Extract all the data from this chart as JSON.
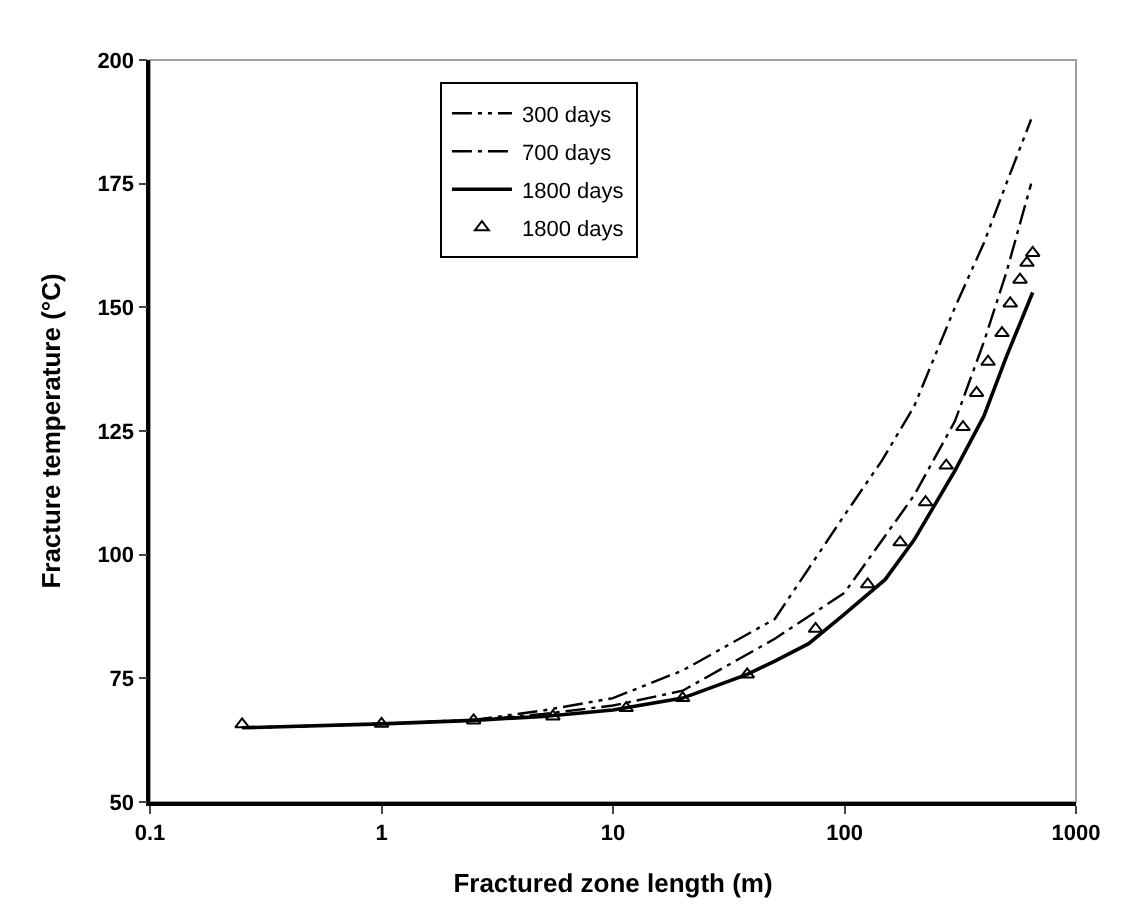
{
  "chart_data": {
    "type": "line",
    "xlabel": "Fractured zone length (m)",
    "ylabel": "Fracture temperature (°C)",
    "log": "x",
    "grid": false,
    "legend": "top",
    "xlim": [
      0.1,
      1000
    ],
    "xticks": [
      0.1,
      1,
      10,
      100,
      1000
    ],
    "ylim": [
      50,
      200
    ],
    "yticks": [
      50,
      75,
      100,
      125,
      150,
      175,
      200
    ],
    "series": [
      {
        "name": "300 days",
        "color": "#000000",
        "line_style": "dashdotdot",
        "marker": "none",
        "x": [
          0.25,
          1,
          2.5,
          5,
          10,
          20,
          50,
          100,
          145,
          200,
          300,
          400,
          500,
          640
        ],
        "values": [
          65,
          65.8,
          66.6,
          68.5,
          71,
          76.6,
          87,
          108,
          119,
          130,
          150,
          163,
          175,
          188
        ]
      },
      {
        "name": "700 days",
        "color": "#000000",
        "line_style": "dashdot",
        "marker": "none",
        "x": [
          0.25,
          1,
          2.5,
          5,
          10,
          20,
          50,
          100,
          200,
          300,
          400,
          500,
          640
        ],
        "values": [
          65,
          65.8,
          66.5,
          67.8,
          69.5,
          72.5,
          83,
          92.3,
          112,
          127,
          143,
          157,
          175
        ]
      },
      {
        "name": "1800 days",
        "color": "#000000",
        "line_style": "solid",
        "marker": "none",
        "x": [
          0.25,
          1,
          2.5,
          5,
          10,
          20,
          38,
          50,
          70,
          100,
          150,
          200,
          300,
          400,
          500,
          650
        ],
        "values": [
          65,
          65.8,
          66.5,
          67.3,
          68.6,
          71,
          75.8,
          78.5,
          82,
          88,
          95,
          103,
          117,
          128,
          140,
          153
        ]
      },
      {
        "name": "1800 days",
        "color": "#000000",
        "type": "scatter",
        "marker": "triangle",
        "x": [
          0.25,
          1,
          2.5,
          5.5,
          11.4,
          20,
          38,
          75,
          126,
          174,
          224,
          275,
          325,
          372,
          417,
          479,
          520,
          573,
          614,
          650
        ],
        "values": [
          65.7,
          65.8,
          66.5,
          67.3,
          69,
          71,
          75.8,
          85,
          94,
          102.5,
          110.6,
          118,
          125.8,
          132.7,
          139,
          144.8,
          150.8,
          155.6,
          159,
          161
        ]
      }
    ]
  }
}
